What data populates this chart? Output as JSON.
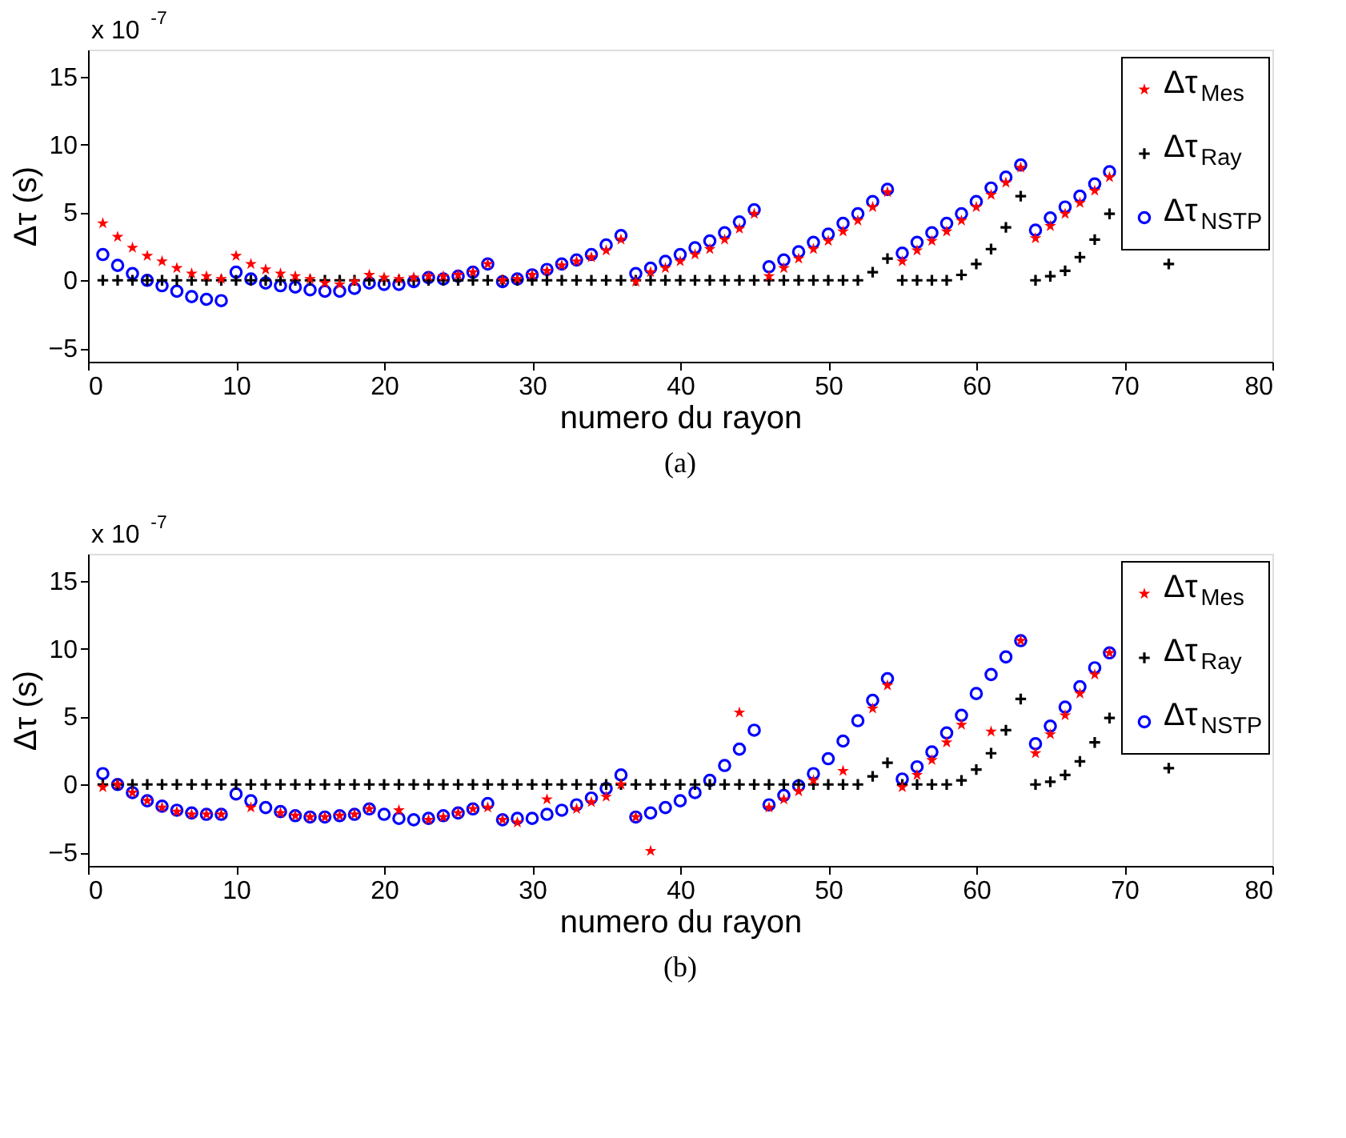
{
  "chart_data": [
    {
      "type": "scatter",
      "title": "(a)",
      "xlabel": "numero du rayon",
      "ylabel": "Δτ (s)",
      "annotations": [
        "x 10$^{-7}$"
      ],
      "xlim": [
        0,
        80
      ],
      "xticks": [
        0,
        10,
        20,
        30,
        40,
        50,
        60,
        70,
        80
      ],
      "ylim": [
        -6,
        17
      ],
      "yticks": [
        -5,
        0,
        5,
        10,
        15
      ],
      "grid": false,
      "legend": "top right",
      "x": [
        1,
        2,
        3,
        4,
        5,
        6,
        7,
        8,
        9,
        10,
        11,
        12,
        13,
        14,
        15,
        16,
        17,
        18,
        19,
        20,
        21,
        22,
        23,
        24,
        25,
        26,
        27,
        28,
        29,
        30,
        31,
        32,
        33,
        34,
        35,
        36,
        37,
        38,
        39,
        40,
        41,
        42,
        43,
        44,
        45,
        46,
        47,
        48,
        49,
        50,
        51,
        52,
        53,
        54,
        55,
        56,
        57,
        58,
        59,
        60,
        61,
        62,
        63,
        64,
        65,
        66,
        67,
        68,
        69,
        70,
        71,
        72,
        73
      ],
      "series": [
        {
          "name": "Δτ$_{Mes}$",
          "color": "#ff0000",
          "marker": "star",
          "values": [
            4.2,
            3.2,
            2.4,
            1.8,
            1.4,
            0.9,
            0.5,
            0.3,
            0.1,
            1.8,
            1.2,
            0.8,
            0.5,
            0.3,
            0.1,
            -0.2,
            -0.3,
            -0.1,
            0.4,
            0.2,
            0.1,
            0.2,
            0.3,
            0.3,
            0.4,
            0.6,
            1.2,
            0,
            0.1,
            0.4,
            0.7,
            1.1,
            1.4,
            1.7,
            2.2,
            3.0,
            -0.1,
            0.6,
            0.9,
            1.4,
            1.9,
            2.3,
            3.0,
            3.8,
            4.9,
            0.3,
            0.9,
            1.6,
            2.3,
            2.9,
            3.6,
            4.4,
            5.4,
            6.5,
            1.4,
            2.2,
            2.9,
            3.6,
            4.4,
            5.4,
            6.3,
            7.2,
            8.3,
            3.1,
            4.0,
            4.9,
            5.7,
            6.6,
            7.6,
            null,
            null,
            null,
            null
          ]
        },
        {
          "name": "Δτ$_{Ray}$",
          "color": "#000000",
          "marker": "cross",
          "values": [
            0,
            0,
            0,
            0,
            0,
            0,
            0,
            0,
            0,
            0,
            0,
            0,
            0,
            0,
            0,
            0,
            0,
            0,
            0,
            0,
            0,
            0,
            0,
            0,
            0,
            0,
            0,
            0,
            0,
            0,
            0,
            0,
            0,
            0,
            0,
            0,
            0,
            0,
            0,
            0,
            0,
            0,
            0,
            0,
            0,
            0,
            0,
            0,
            0,
            0,
            0,
            0,
            0.6,
            1.6,
            0,
            0,
            0,
            0,
            0.4,
            1.2,
            2.3,
            3.9,
            6.2,
            0,
            0.3,
            0.7,
            1.7,
            3.0,
            4.9,
            null,
            null,
            null,
            1.2
          ]
        },
        {
          "name": "Δτ$_{NSTP}$",
          "color": "#0000ff",
          "marker": "circle",
          "values": [
            1.9,
            1.1,
            0.5,
            0,
            -0.4,
            -0.8,
            -1.2,
            -1.4,
            -1.5,
            0.6,
            0.1,
            -0.2,
            -0.4,
            -0.5,
            -0.7,
            -0.8,
            -0.8,
            -0.6,
            -0.2,
            -0.3,
            -0.3,
            -0.1,
            0.2,
            0.1,
            0.3,
            0.6,
            1.2,
            -0.1,
            0.1,
            0.4,
            0.8,
            1.2,
            1.5,
            1.9,
            2.6,
            3.3,
            0.5,
            0.9,
            1.4,
            1.9,
            2.4,
            2.9,
            3.5,
            4.3,
            5.2,
            1.0,
            1.5,
            2.1,
            2.8,
            3.4,
            4.2,
            4.9,
            5.8,
            6.7,
            2.0,
            2.8,
            3.5,
            4.2,
            4.9,
            5.8,
            6.8,
            7.6,
            8.5,
            3.7,
            4.6,
            5.4,
            6.2,
            7.1,
            8.0,
            null,
            null,
            null,
            null
          ]
        }
      ]
    },
    {
      "type": "scatter",
      "title": "(b)",
      "xlabel": "numero du rayon",
      "ylabel": "Δτ (s)",
      "annotations": [
        "x 10$^{-7}$"
      ],
      "xlim": [
        0,
        80
      ],
      "xticks": [
        0,
        10,
        20,
        30,
        40,
        50,
        60,
        70,
        80
      ],
      "ylim": [
        -6,
        17
      ],
      "yticks": [
        -5,
        0,
        5,
        10,
        15
      ],
      "grid": false,
      "legend": "top right",
      "x": [
        1,
        2,
        3,
        4,
        5,
        6,
        7,
        8,
        9,
        10,
        11,
        12,
        13,
        14,
        15,
        16,
        17,
        18,
        19,
        20,
        21,
        22,
        23,
        24,
        25,
        26,
        27,
        28,
        29,
        30,
        31,
        32,
        33,
        34,
        35,
        36,
        37,
        38,
        39,
        40,
        41,
        42,
        43,
        44,
        45,
        46,
        47,
        48,
        49,
        50,
        51,
        52,
        53,
        54,
        55,
        56,
        57,
        58,
        59,
        60,
        61,
        62,
        63,
        64,
        65,
        66,
        67,
        68,
        69,
        70,
        71,
        72,
        73
      ],
      "series": [
        {
          "name": "Δτ$_{Mes}$",
          "color": "#ff0000",
          "marker": "star",
          "values": [
            -0.2,
            0,
            -0.6,
            -1.2,
            -1.7,
            -2.0,
            -2.2,
            -2.2,
            -2.2,
            null,
            -1.7,
            null,
            -2.1,
            -2.3,
            -2.4,
            -2.4,
            -2.3,
            -2.2,
            -1.8,
            null,
            -1.9,
            null,
            -2.6,
            -2.4,
            -2.1,
            -1.8,
            -1.7,
            -2.6,
            -2.8,
            null,
            -1.1,
            null,
            -1.8,
            -1.3,
            -0.9,
            0,
            -2.4,
            -4.9,
            null,
            null,
            null,
            null,
            null,
            5.3,
            null,
            -1.7,
            -1.1,
            -0.5,
            0.3,
            null,
            1.0,
            null,
            5.6,
            7.3,
            -0.2,
            0.7,
            1.8,
            3.1,
            4.4,
            null,
            3.9,
            null,
            10.6,
            2.3,
            3.7,
            5.1,
            6.7,
            8.1,
            9.7,
            null,
            null,
            null,
            null
          ]
        },
        {
          "name": "Δτ$_{Ray}$",
          "color": "#000000",
          "marker": "cross",
          "values": [
            0,
            0,
            0,
            0,
            0,
            0,
            0,
            0,
            0,
            0,
            0,
            0,
            0,
            0,
            0,
            0,
            0,
            0,
            0,
            0,
            0,
            0,
            0,
            0,
            0,
            0,
            0,
            0,
            0,
            0,
            0,
            0,
            0,
            0,
            0,
            0,
            0,
            0,
            0,
            0,
            0,
            0,
            0,
            0,
            0,
            0,
            0,
            0,
            0,
            0,
            0,
            0,
            0.6,
            1.6,
            0,
            0,
            0,
            0,
            0.3,
            1.1,
            2.3,
            4.0,
            6.3,
            0,
            0.2,
            0.7,
            1.7,
            3.1,
            4.9,
            null,
            null,
            null,
            1.2
          ]
        },
        {
          "name": "Δτ$_{NSTP}$",
          "color": "#0000ff",
          "marker": "circle",
          "values": [
            0.8,
            0,
            -0.6,
            -1.2,
            -1.6,
            -1.9,
            -2.1,
            -2.2,
            -2.2,
            -0.7,
            -1.2,
            -1.7,
            -2.0,
            -2.3,
            -2.4,
            -2.4,
            -2.3,
            -2.2,
            -1.8,
            -2.2,
            -2.5,
            -2.6,
            -2.5,
            -2.3,
            -2.1,
            -1.8,
            -1.4,
            -2.6,
            -2.5,
            -2.5,
            -2.2,
            -1.9,
            -1.5,
            -1.0,
            -0.3,
            0.7,
            -2.4,
            -2.1,
            -1.7,
            -1.2,
            -0.6,
            0.3,
            1.4,
            2.6,
            4.0,
            -1.5,
            -0.8,
            -0.1,
            0.8,
            1.9,
            3.2,
            4.7,
            6.2,
            7.8,
            0.4,
            1.3,
            2.4,
            3.8,
            5.1,
            6.7,
            8.1,
            9.4,
            10.6,
            3.0,
            4.3,
            5.7,
            7.2,
            8.6,
            9.7,
            null,
            null,
            null,
            null
          ]
        }
      ]
    }
  ]
}
